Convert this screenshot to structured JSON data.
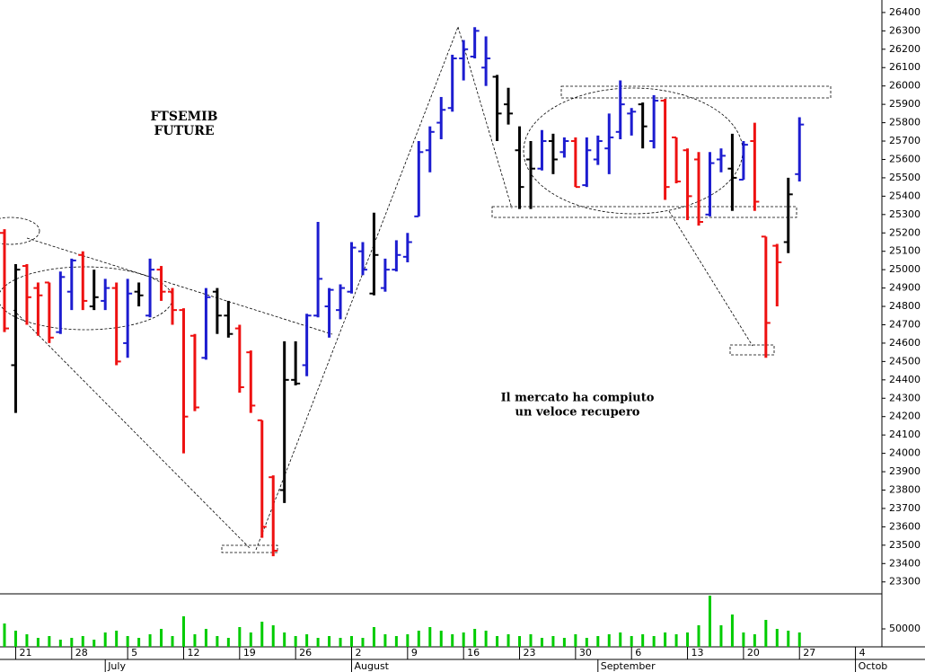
{
  "chart_data": [
    {
      "type": "ohlc",
      "title_lines": [
        "FTSEMIB",
        "FUTURE"
      ],
      "annotations": [
        "Il mercato ha compiuto",
        "un veloce recupero"
      ],
      "open": [
        25200,
        24480,
        25020,
        24900,
        24930,
        24660,
        24880,
        25080,
        24800,
        24830,
        24900,
        24600,
        24880,
        24750,
        25000,
        24880,
        24780,
        24640,
        24520,
        24880,
        24750,
        24680,
        24550,
        24180,
        23870,
        23800,
        24400,
        24480,
        24750,
        24800,
        24780,
        24880,
        25100,
        24870,
        24900,
        25000,
        25070,
        25290,
        25650,
        25800,
        25880,
        26150,
        26160,
        26100,
        26050,
        25900,
        25650,
        25600,
        25550,
        25700,
        25640,
        25700,
        25460,
        25600,
        25660,
        25750,
        25850,
        25900,
        25700,
        25920,
        25720,
        25650,
        25600,
        25300,
        25600,
        25550,
        25490,
        25700,
        25180,
        25130,
        25150,
        25520
      ],
      "high": [
        25220,
        25030,
        25030,
        24930,
        24930,
        24990,
        25060,
        25100,
        25000,
        24950,
        24930,
        24950,
        24930,
        25060,
        25020,
        24900,
        24790,
        24650,
        24900,
        24900,
        24830,
        24700,
        24560,
        24180,
        23880,
        24610,
        24610,
        24760,
        25260,
        24900,
        24920,
        25150,
        25150,
        25310,
        25060,
        25160,
        25200,
        25700,
        25780,
        25940,
        26170,
        26250,
        26320,
        26270,
        26060,
        25990,
        25780,
        25700,
        25760,
        25740,
        25720,
        25720,
        25720,
        25730,
        25850,
        26030,
        25880,
        25910,
        25950,
        25930,
        25720,
        25660,
        25640,
        25640,
        25660,
        25740,
        25700,
        25800,
        25180,
        25140,
        25500,
        25830
      ],
      "low": [
        24660,
        24220,
        24700,
        24640,
        24600,
        24650,
        24780,
        24780,
        24780,
        24780,
        24480,
        24520,
        24800,
        24740,
        24830,
        24700,
        24000,
        24230,
        24510,
        24650,
        24630,
        24330,
        24220,
        23540,
        23440,
        23730,
        24370,
        24420,
        24740,
        24630,
        24730,
        24870,
        24970,
        24860,
        24880,
        24990,
        25040,
        25290,
        25530,
        25710,
        25860,
        26030,
        26150,
        26000,
        25700,
        25790,
        25330,
        25330,
        25540,
        25520,
        25610,
        25450,
        25450,
        25570,
        25520,
        25710,
        25730,
        25660,
        25660,
        25380,
        25470,
        25270,
        25240,
        25290,
        25530,
        25320,
        25490,
        25320,
        24520,
        24800,
        25090,
        25480
      ],
      "close": [
        24680,
        25000,
        24850,
        24860,
        24630,
        24960,
        25050,
        24830,
        24850,
        24900,
        24500,
        24870,
        24860,
        25000,
        24880,
        24780,
        24200,
        24250,
        24850,
        24750,
        24650,
        24360,
        24260,
        23600,
        23470,
        24400,
        24380,
        24750,
        24950,
        24890,
        24900,
        25120,
        25000,
        25080,
        25000,
        25080,
        25150,
        25640,
        25750,
        25870,
        26150,
        26200,
        26300,
        26150,
        25850,
        25850,
        25450,
        25550,
        25700,
        25600,
        25700,
        25450,
        25650,
        25700,
        25720,
        25900,
        25860,
        25780,
        25920,
        25450,
        25480,
        25400,
        25260,
        25580,
        25620,
        25500,
        25680,
        25370,
        24710,
        25040,
        25410,
        25790
      ],
      "colors": [
        "#ee1111",
        "#000000",
        "#ee1111",
        "#ee1111",
        "#ee1111",
        "#1c1cd0",
        "#1c1cd0",
        "#ee1111",
        "#000000",
        "#1c1cd0",
        "#ee1111",
        "#1c1cd0",
        "#000000",
        "#1c1cd0",
        "#ee1111",
        "#ee1111",
        "#ee1111",
        "#ee1111",
        "#1c1cd0",
        "#000000",
        "#000000",
        "#ee1111",
        "#ee1111",
        "#ee1111",
        "#ee1111",
        "#000000",
        "#000000",
        "#1c1cd0",
        "#1c1cd0",
        "#1c1cd0",
        "#1c1cd0",
        "#1c1cd0",
        "#1c1cd0",
        "#000000",
        "#1c1cd0",
        "#1c1cd0",
        "#1c1cd0",
        "#1c1cd0",
        "#1c1cd0",
        "#1c1cd0",
        "#1c1cd0",
        "#1c1cd0",
        "#1c1cd0",
        "#1c1cd0",
        "#000000",
        "#000000",
        "#000000",
        "#000000",
        "#1c1cd0",
        "#000000",
        "#1c1cd0",
        "#ee1111",
        "#1c1cd0",
        "#1c1cd0",
        "#1c1cd0",
        "#1c1cd0",
        "#1c1cd0",
        "#000000",
        "#1c1cd0",
        "#ee1111",
        "#ee1111",
        "#ee1111",
        "#ee1111",
        "#1c1cd0",
        "#1c1cd0",
        "#000000",
        "#1c1cd0",
        "#ee1111",
        "#ee1111",
        "#ee1111",
        "#000000",
        "#1c1cd0"
      ],
      "xlim": [
        -0.4,
        78.2
      ],
      "ylim": [
        23240,
        26468
      ],
      "yticks": [
        23300,
        23400,
        23500,
        23600,
        23700,
        23800,
        23900,
        24000,
        24100,
        24200,
        24300,
        24400,
        24500,
        24600,
        24700,
        24800,
        24900,
        25000,
        25100,
        25200,
        25300,
        25400,
        25500,
        25600,
        25700,
        25800,
        25900,
        26000,
        26100,
        26200,
        26300,
        26400
      ]
    },
    {
      "type": "bar",
      "values": [
        53000,
        49000,
        47000,
        45000,
        46000,
        44000,
        45000,
        46000,
        44000,
        48000,
        49000,
        46000,
        45000,
        47000,
        50000,
        46000,
        57000,
        47000,
        50000,
        46000,
        45000,
        51000,
        48000,
        54000,
        52000,
        48000,
        46000,
        47000,
        45000,
        46000,
        45000,
        46000,
        45000,
        51000,
        47000,
        46000,
        47000,
        49000,
        51000,
        49000,
        47000,
        48000,
        50000,
        49000,
        46000,
        47000,
        46000,
        47000,
        45000,
        46000,
        45000,
        47000,
        45000,
        46000,
        47000,
        48000,
        46000,
        47000,
        46000,
        48000,
        47000,
        48000,
        52000,
        68500,
        52000,
        58000,
        48000,
        47000,
        55000,
        50000,
        49000,
        48000
      ],
      "color": "#00cc00",
      "xlim": [
        -0.4,
        78.2
      ],
      "ylim": [
        40000,
        69500
      ],
      "yticks": [
        50000
      ],
      "xticks": [
        {
          "value": 1,
          "label": "21"
        },
        {
          "value": 6,
          "label": "28"
        },
        {
          "value": 11,
          "label": "5"
        },
        {
          "value": 16,
          "label": "12"
        },
        {
          "value": 21,
          "label": "19"
        },
        {
          "value": 26,
          "label": "26"
        },
        {
          "value": 31,
          "label": "2"
        },
        {
          "value": 36,
          "label": "9"
        },
        {
          "value": 41,
          "label": "16"
        },
        {
          "value": 46,
          "label": "23"
        },
        {
          "value": 51,
          "label": "30"
        },
        {
          "value": 56,
          "label": "6"
        },
        {
          "value": 61,
          "label": "13"
        },
        {
          "value": 66,
          "label": "20"
        },
        {
          "value": 71,
          "label": "27"
        },
        {
          "value": 76,
          "label": "4"
        }
      ],
      "month_ticks": [
        {
          "value": 9,
          "label": "July"
        },
        {
          "value": 31,
          "label": "August"
        },
        {
          "value": 53,
          "label": "September"
        },
        {
          "value": 76,
          "label": "Octob"
        }
      ]
    }
  ]
}
